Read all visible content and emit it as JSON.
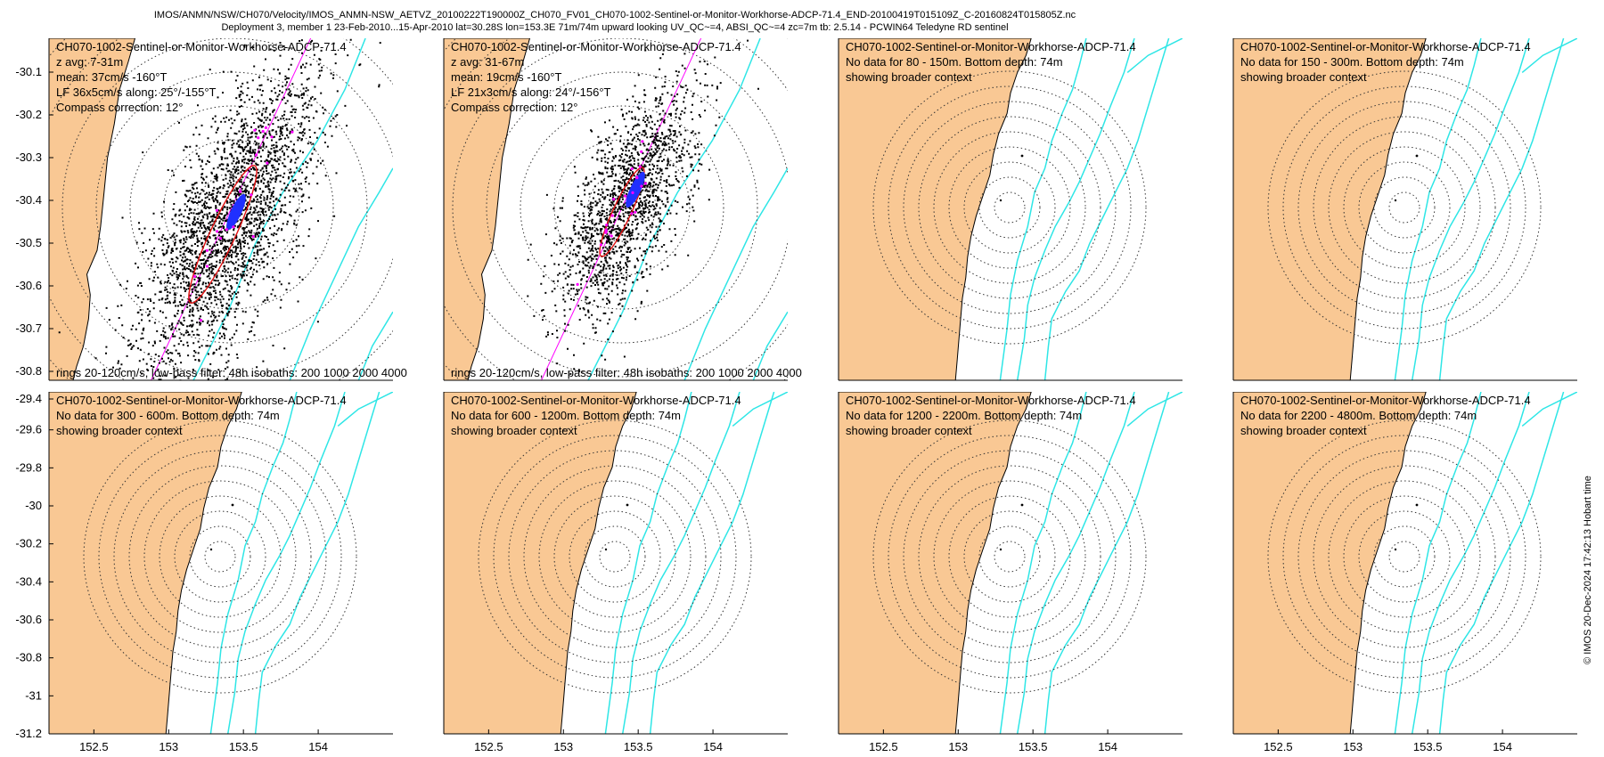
{
  "header": {
    "line1": "IMOS/ANMN/NSW/CH070/Velocity/IMOS_ANMN-NSW_AETVZ_20100222T190000Z_CH070_FV01_CH070-1002-Sentinel-or-Monitor-Workhorse-ADCP-71.4_END-20100419T015109Z_C-20160824T015805Z.nc",
    "line2": "Deployment 3, member 1 23-Feb-2010...15-Apr-2010 lat=30.28S lon=153.3E 71m/74m upward looking UV_QC~=4, ABSI_QC~=4 zc=7m tb: 2.5.14 - PCWIN64 Teledyne RD sentinel"
  },
  "side_label": "© IMOS 20-Dec-2024 17:42:13 Hobart time",
  "colors": {
    "land": "#f9c894",
    "isobath": "#2ee6e6",
    "scatter": "#000000",
    "ellipse": "#e01010",
    "mean_vector": "#2030ff",
    "principal_axis": "#ff00ff",
    "rings": "#333333"
  },
  "chart_data": [
    {
      "type": "scatter",
      "panel": "top-1",
      "title_lines": [
        "CH070-1002-Sentinel-or-Monitor-Workhorse-ADCP-71.4",
        "z avg: 7-31m",
        "mean: 37cm/s -160°T",
        "LF 36x5cm/s along: 25°/-155°T",
        "Compass correction: 12°"
      ],
      "footer": "rings 20-120cm/s, low-pass filter: 48h isobaths: 200 1000 2000 4000",
      "ylim": [
        -30.8,
        -30.0
      ],
      "yticks": [
        -30.1,
        -30.2,
        -30.3,
        -30.4,
        -30.5,
        -30.6,
        -30.7,
        -30.8
      ],
      "xticks": [],
      "mean_speed_cm_s": 37,
      "mean_dir_degT": -160,
      "lf_major_cm_s": 36,
      "lf_minor_cm_s": 5,
      "along_deg": 25,
      "compass_correction_deg": 12
    },
    {
      "type": "scatter",
      "panel": "top-2",
      "title_lines": [
        "CH070-1002-Sentinel-or-Monitor-Workhorse-ADCP-71.4",
        "z avg: 31-67m",
        "mean: 19cm/s -160°T",
        "LF 21x3cm/s along: 24°/-156°T",
        "Compass correction: 12°"
      ],
      "footer": "rings 20-120cm/s, low-pass filter: 48h isobaths: 200 1000 2000 4000",
      "ylim": [
        -30.8,
        -30.0
      ],
      "yticks": [],
      "xticks": [],
      "mean_speed_cm_s": 19,
      "mean_dir_degT": -160,
      "lf_major_cm_s": 21,
      "lf_minor_cm_s": 3,
      "along_deg": 24,
      "compass_correction_deg": 12
    },
    {
      "type": "map",
      "panel": "top-3",
      "title_lines": [
        "CH070-1002-Sentinel-or-Monitor-Workhorse-ADCP-71.4",
        "No data for 80 - 150m. Bottom depth: 74m",
        "showing broader context"
      ],
      "yticks": [],
      "xticks": []
    },
    {
      "type": "map",
      "panel": "top-4",
      "title_lines": [
        "CH070-1002-Sentinel-or-Monitor-Workhorse-ADCP-71.4",
        "No data for 150 - 300m. Bottom depth: 74m",
        "showing broader context"
      ],
      "yticks": [],
      "xticks": []
    },
    {
      "type": "map",
      "panel": "bottom-1",
      "title_lines": [
        "CH070-1002-Sentinel-or-Monitor-Workhorse-ADCP-71.4",
        "No data for 300 - 600m. Bottom depth: 74m",
        "showing broader context"
      ],
      "ylim": [
        -31.2,
        -29.4
      ],
      "yticks": [
        -29.4,
        -29.6,
        -29.8,
        -30,
        -30.2,
        -30.4,
        -30.6,
        -30.8,
        -31,
        -31.2
      ],
      "xlim": [
        152.2,
        154.5
      ],
      "xticks": [
        152.5,
        153,
        153.5,
        154
      ]
    },
    {
      "type": "map",
      "panel": "bottom-2",
      "title_lines": [
        "CH070-1002-Sentinel-or-Monitor-Workhorse-ADCP-71.4",
        "No data for 600 - 1200m. Bottom depth: 74m",
        "showing broader context"
      ],
      "xlim": [
        152.2,
        154.5
      ],
      "yticks": [],
      "xticks": [
        152.5,
        153,
        153.5,
        154
      ]
    },
    {
      "type": "map",
      "panel": "bottom-3",
      "title_lines": [
        "CH070-1002-Sentinel-or-Monitor-Workhorse-ADCP-71.4",
        "No data for 1200 - 2200m. Bottom depth: 74m",
        "showing broader context"
      ],
      "xlim": [
        152.2,
        154.5
      ],
      "yticks": [],
      "xticks": [
        152.5,
        153,
        153.5,
        154
      ]
    },
    {
      "type": "map",
      "panel": "bottom-4",
      "title_lines": [
        "CH070-1002-Sentinel-or-Monitor-Workhorse-ADCP-71.4",
        "No data for 2200 - 4800m. Bottom depth: 74m",
        "showing broader context"
      ],
      "xlim": [
        152.2,
        154.5
      ],
      "yticks": [],
      "xticks": [
        152.5,
        153,
        153.5,
        154
      ]
    }
  ]
}
